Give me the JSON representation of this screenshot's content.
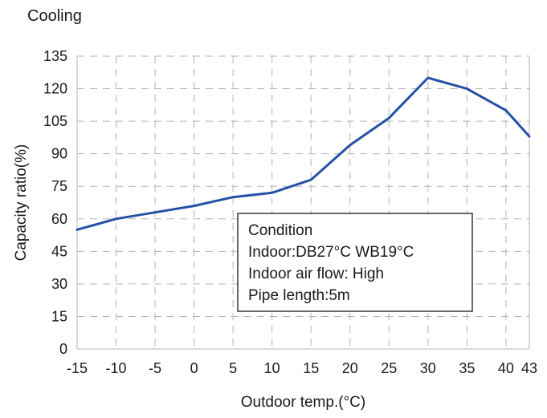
{
  "chart_data": {
    "type": "line",
    "title": "Cooling",
    "xlabel": "Outdoor temp.(°C)",
    "ylabel": "Capacity ratio(%)",
    "x_ticks": [
      "-15",
      "-10",
      "-5",
      "0",
      "5",
      "10",
      "15",
      "20",
      "25",
      "30",
      "35",
      "40",
      "43"
    ],
    "y_ticks": [
      "0",
      "15",
      "30",
      "45",
      "60",
      "75",
      "90",
      "105",
      "120",
      "135"
    ],
    "xlim": [
      -15,
      43
    ],
    "ylim": [
      0,
      135
    ],
    "grid": true,
    "series": [
      {
        "x": [
          -15,
          -10,
          -5,
          0,
          5,
          10,
          15,
          20,
          25,
          30,
          35,
          40,
          43
        ],
        "y": [
          55,
          60,
          63,
          66,
          70,
          72,
          78,
          94,
          106.5,
          125,
          120,
          110,
          98
        ],
        "color": "#2451a6"
      }
    ],
    "annotation": {
      "lines": [
        "Condition",
        "Indoor:DB27°C WB19°C",
        "Indoor air flow: High",
        "Pipe length:5m"
      ]
    }
  }
}
